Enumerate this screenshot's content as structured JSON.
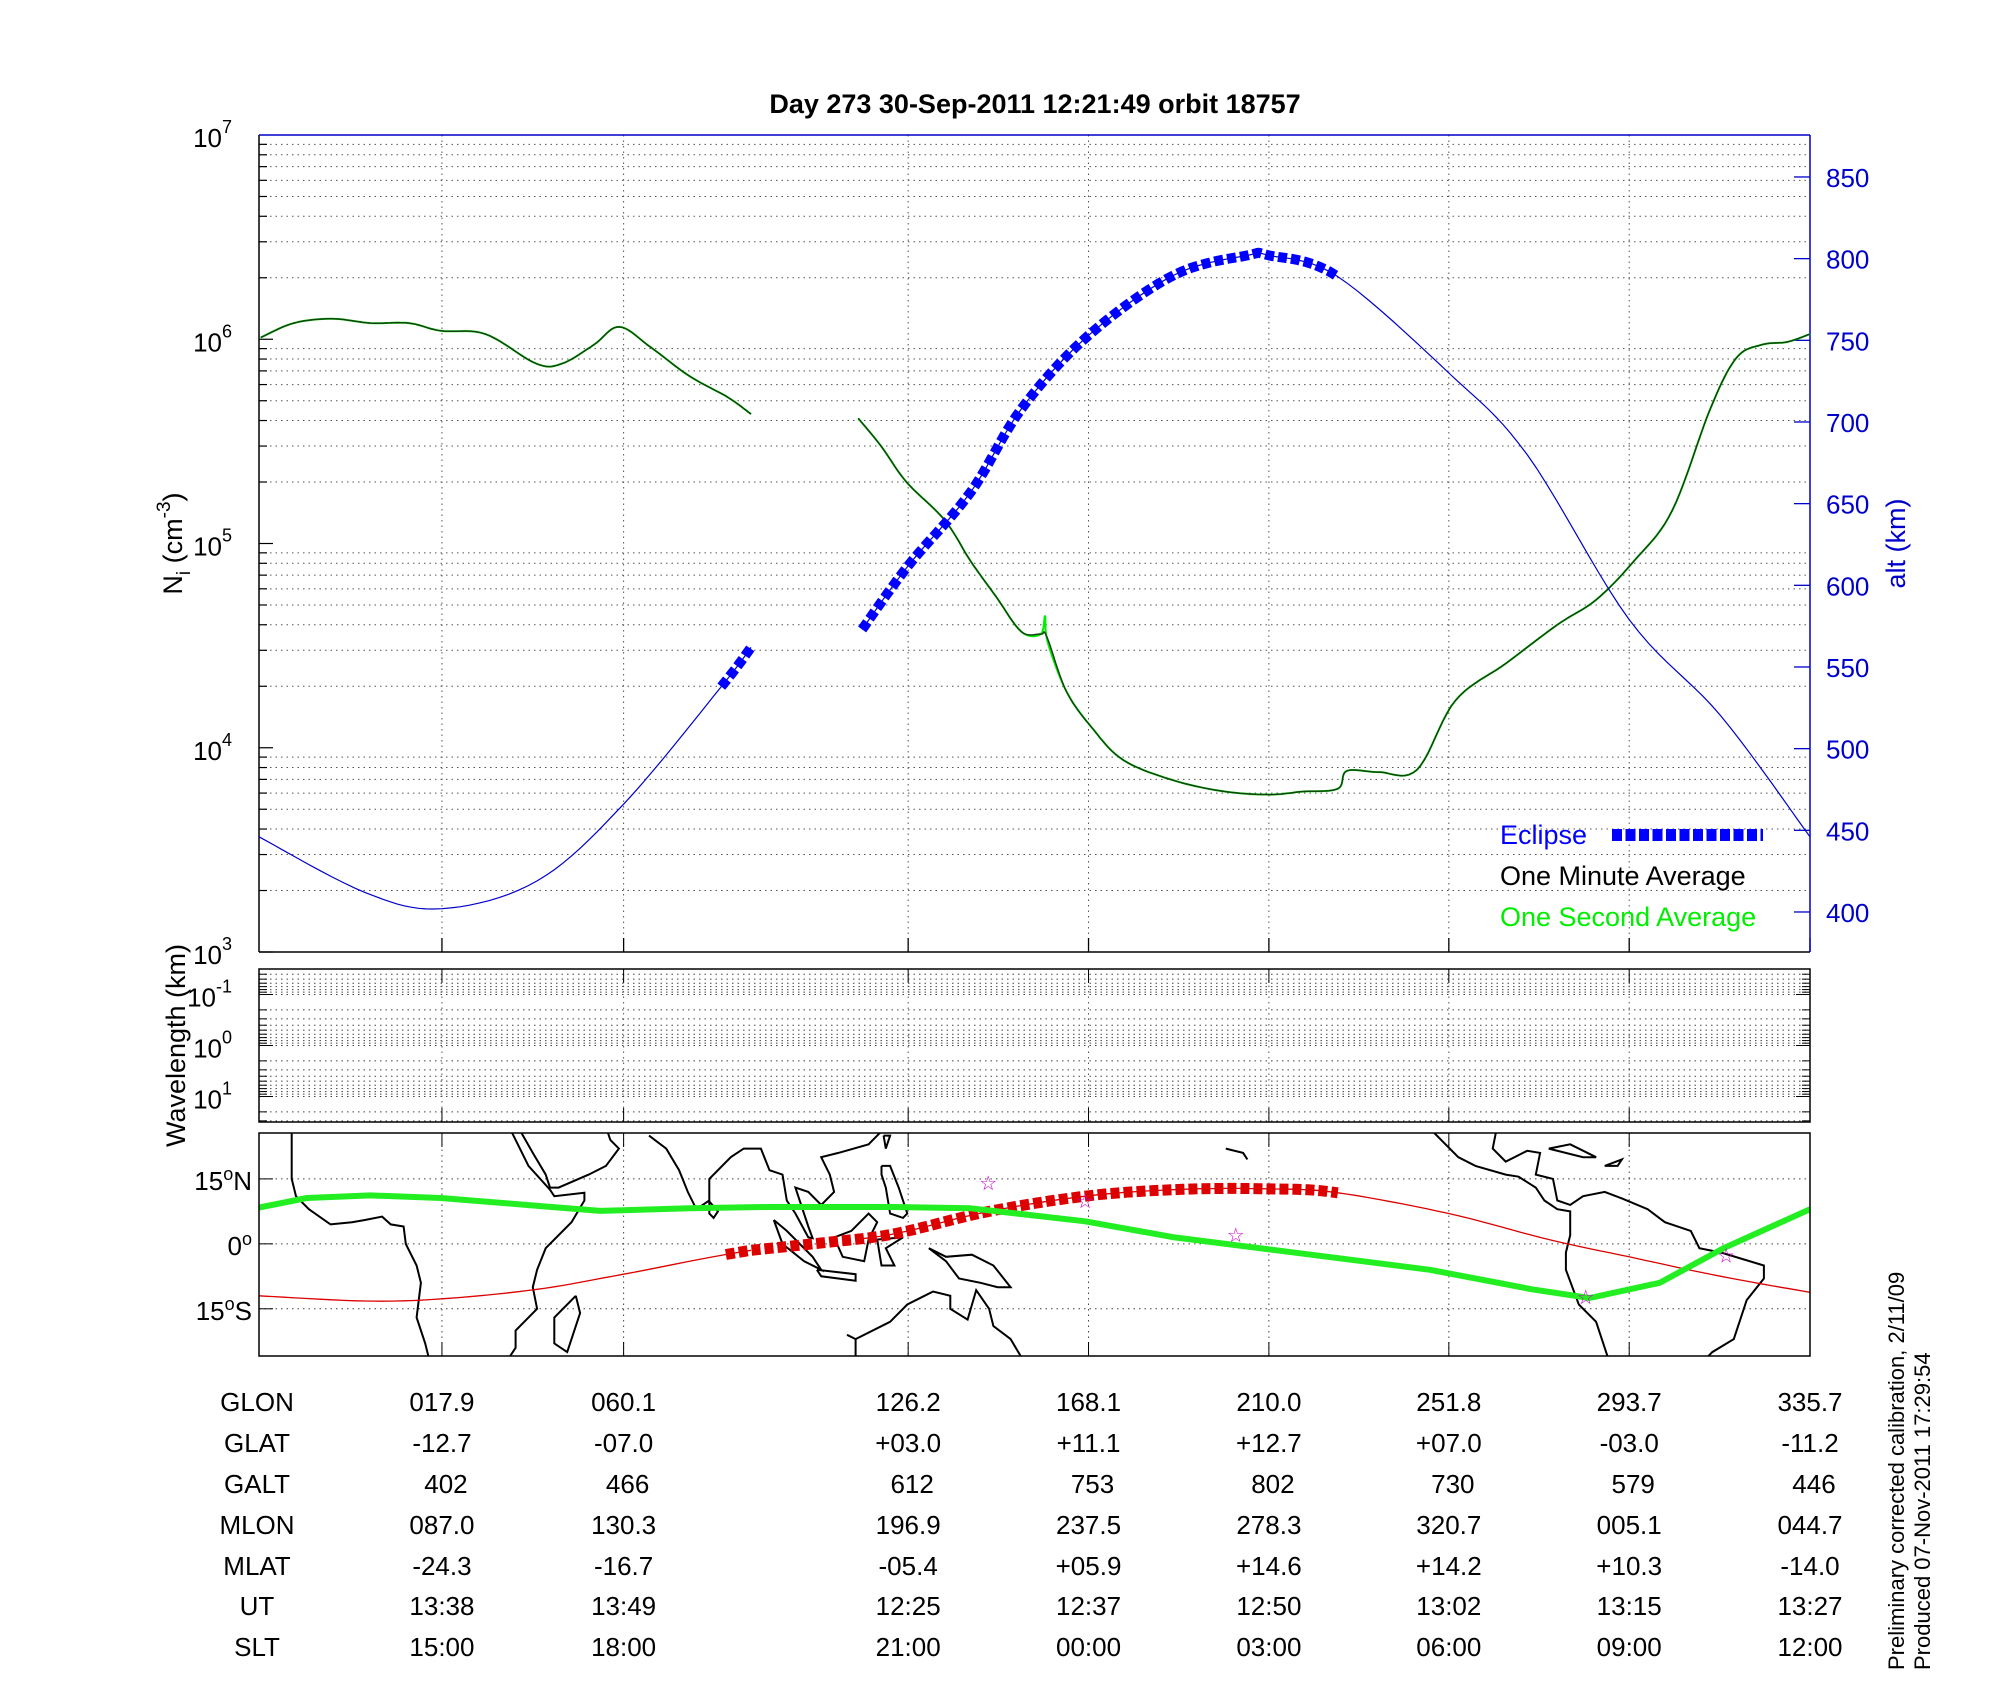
{
  "title": "Day 273  30-Sep-2011 12:21:49   orbit 18757",
  "footnote": [
    "Preliminary corrected calibration, 2/11/09",
    "Produced 07-Nov-2011 17:29:54"
  ],
  "colors": {
    "eclipse": "#0000ff",
    "one_minute": "#000000",
    "one_second": "#00ee00",
    "altitude": "#0000cc",
    "track": "#dd0000",
    "dip_equator": "#22ee22",
    "stars": "#cc00cc"
  },
  "chart_data": [
    {
      "type": "line",
      "panel": "density",
      "ylabel": {
        "base": "N",
        "sub": "i",
        "unit": " (cm",
        "sup": "-3",
        "close": ")"
      },
      "y_scale": "log",
      "ylim": [
        1000,
        10000000
      ],
      "y_ticks": [
        {
          "base": "10",
          "exp": "3",
          "v": 1000
        },
        {
          "base": "10",
          "exp": "4",
          "v": 10000
        },
        {
          "base": "10",
          "exp": "5",
          "v": 100000
        },
        {
          "base": "10",
          "exp": "6",
          "v": 1000000
        },
        {
          "base": "10",
          "exp": "7",
          "v": 10000000
        }
      ],
      "x_quantity": "GLON",
      "xlim": [
        -24.6,
        335.7
      ],
      "right_axis": {
        "label": "alt (km)",
        "ylim": [
          375.5,
          875.7
        ],
        "ticks": [
          "400",
          "450",
          "500",
          "550",
          "600",
          "650",
          "700",
          "750",
          "800",
          "850"
        ]
      },
      "grid": true,
      "legend": {
        "placement": "bottom-right",
        "entries": [
          "Eclipse",
          "One Minute Average",
          "One Second Average"
        ]
      },
      "series": [
        {
          "name": "One Minute Average",
          "segments": [
            [
              [
                -24.2,
                1020000.0
              ],
              [
                -16.5,
                1200000.0
              ],
              [
                -7.6,
                1260000.0
              ],
              [
                1.3,
                1200000.0
              ],
              [
                10.2,
                1200000.0
              ],
              [
                17.6,
                1100000.0
              ],
              [
                28.0,
                1060000.0
              ],
              [
                39.8,
                760000.0
              ],
              [
                45.8,
                760000.0
              ],
              [
                53.2,
                940000.0
              ],
              [
                59.1,
                1150000.0
              ],
              [
                66.5,
                910000.0
              ],
              [
                75.4,
                660000.0
              ],
              [
                84.3,
                520000.0
              ],
              [
                89.7,
                430000.0
              ]
            ],
            [
              [
                114.6,
                410000.0
              ],
              [
                119.9,
                300000.0
              ],
              [
                125.8,
                200000.0
              ],
              [
                134.7,
                130000.0
              ],
              [
                140.7,
                82000.0
              ],
              [
                146.6,
                55000.0
              ],
              [
                152.5,
                37000.0
              ],
              [
                157.0,
                36000.0
              ],
              [
                158.4,
                35000.0
              ],
              [
                162.9,
                19000.0
              ],
              [
                168.8,
                12600.0
              ],
              [
                176.2,
                8700.0
              ],
              [
                188.1,
                6900.0
              ],
              [
                199.9,
                6100.0
              ],
              [
                210.3,
                5900.0
              ],
              [
                217.7,
                6100.0
              ],
              [
                226.0,
                6300.0
              ],
              [
                228.1,
                7700.0
              ],
              [
                235.5,
                7600.0
              ],
              [
                244.4,
                7800.0
              ],
              [
                253.3,
                17000.0
              ],
              [
                265.2,
                26000.0
              ],
              [
                277.0,
                40000.0
              ],
              [
                286.0,
                53000.0
              ],
              [
                294.8,
                82000.0
              ],
              [
                303.7,
                145000.0
              ],
              [
                312.6,
                460000.0
              ],
              [
                318.6,
                810000.0
              ],
              [
                324.5,
                940000.0
              ],
              [
                330.4,
                970000.0
              ],
              [
                335.7,
                1060000.0
              ]
            ]
          ]
        },
        {
          "name": "One Second Average",
          "segments": [
            [
              [
                -24.2,
                1020000.0
              ],
              [
                -16.5,
                1200000.0
              ],
              [
                -7.6,
                1260000.0
              ],
              [
                1.3,
                1200000.0
              ],
              [
                10.2,
                1200000.0
              ],
              [
                17.6,
                1100000.0
              ],
              [
                28.0,
                1060000.0
              ],
              [
                39.8,
                760000.0
              ],
              [
                45.8,
                760000.0
              ],
              [
                53.2,
                940000.0
              ],
              [
                59.1,
                1150000.0
              ],
              [
                66.5,
                910000.0
              ],
              [
                75.4,
                660000.0
              ],
              [
                84.3,
                520000.0
              ],
              [
                89.7,
                430000.0
              ]
            ],
            [
              [
                114.6,
                410000.0
              ],
              [
                119.9,
                300000.0
              ],
              [
                125.8,
                200000.0
              ],
              [
                134.7,
                130000.0
              ],
              [
                140.7,
                82000.0
              ],
              [
                146.6,
                55000.0
              ],
              [
                152.5,
                37000.0
              ],
              [
                157.0,
                36000.0
              ],
              [
                158.0,
                44000.0
              ],
              [
                158.6,
                33000.0
              ],
              [
                162.9,
                19000.0
              ],
              [
                168.8,
                12600.0
              ],
              [
                176.2,
                8700.0
              ],
              [
                188.1,
                6900.0
              ],
              [
                199.9,
                6100.0
              ],
              [
                210.3,
                5900.0
              ],
              [
                217.7,
                6100.0
              ],
              [
                226.0,
                6300.0
              ],
              [
                228.1,
                7700.0
              ],
              [
                235.5,
                7600.0
              ],
              [
                244.4,
                7800.0
              ],
              [
                253.3,
                17000.0
              ],
              [
                265.2,
                26000.0
              ],
              [
                277.0,
                40000.0
              ],
              [
                286.0,
                53000.0
              ],
              [
                294.8,
                82000.0
              ],
              [
                303.7,
                145000.0
              ],
              [
                312.6,
                460000.0
              ],
              [
                318.6,
                810000.0
              ],
              [
                324.5,
                940000.0
              ],
              [
                330.4,
                970000.0
              ],
              [
                335.7,
                1060000.0
              ]
            ]
          ]
        },
        {
          "name": "alt (km)",
          "axis": "right",
          "segments": [
            [
              [
                -24.6,
                446
              ],
              [
                0,
                412
              ],
              [
                17.9,
                402
              ],
              [
                40,
                419
              ],
              [
                60.1,
                466
              ],
              [
                82.8,
                538
              ],
              [
                89.7,
                562
              ]
            ],
            [
              [
                115.5,
                573
              ],
              [
                126.2,
                612
              ],
              [
                140.7,
                657
              ],
              [
                152.5,
                708
              ],
              [
                168.1,
                753
              ],
              [
                188,
                790
              ],
              [
                205,
                802
              ],
              [
                210,
                802
              ],
              [
                226,
                789
              ],
              [
                251.8,
                730
              ],
              [
                270,
                680
              ],
              [
                293.7,
                579
              ],
              [
                315,
                520
              ],
              [
                335.7,
                446
              ]
            ]
          ]
        }
      ],
      "eclipse_ranges": [
        [
          82.8,
          89.7
        ],
        [
          115.5,
          226.0
        ]
      ]
    },
    {
      "type": "heatmap",
      "panel": "wavelength",
      "ylabel": "Wavelength (km)",
      "y_scale": "log",
      "y_reversed": true,
      "ylim": [
        0.0316,
        31.6
      ],
      "y_ticks": [
        {
          "base": "10",
          "exp": "-1"
        },
        {
          "base": "10",
          "exp": "0"
        },
        {
          "base": "10",
          "exp": "1"
        }
      ],
      "values": []
    },
    {
      "type": "scatter",
      "panel": "map",
      "ylim": [
        -25.9,
        25.6
      ],
      "y_ticks": [
        {
          "label": "15",
          "deg": "o",
          "hemi": "N",
          "v": 15
        },
        {
          "label": "0",
          "deg": "o",
          "hemi": "",
          "v": 0
        },
        {
          "label": "15",
          "deg": "o",
          "hemi": "S",
          "v": -15
        }
      ],
      "satellite_track": [
        [
          -24.6,
          -12
        ],
        [
          0,
          -13.2
        ],
        [
          17.9,
          -12.7
        ],
        [
          40,
          -10.5
        ],
        [
          60.1,
          -7.0
        ],
        [
          89.7,
          -1.5
        ],
        [
          115.5,
          1.2
        ],
        [
          126.2,
          3.0
        ],
        [
          145,
          7.5
        ],
        [
          168.1,
          11.1
        ],
        [
          190,
          12.6
        ],
        [
          210,
          12.7
        ],
        [
          226,
          11.8
        ],
        [
          251.8,
          7.0
        ],
        [
          275,
          1.0
        ],
        [
          293.7,
          -3.0
        ],
        [
          315,
          -7.5
        ],
        [
          335.7,
          -11.2
        ]
      ],
      "dip_equator": [
        [
          -24.6,
          8.4
        ],
        [
          -13.5,
          10.6
        ],
        [
          1.3,
          11.2
        ],
        [
          17.6,
          10.6
        ],
        [
          39.8,
          8.8
        ],
        [
          54.7,
          7.6
        ],
        [
          75.4,
          8.2
        ],
        [
          93.2,
          8.5
        ],
        [
          122.9,
          8.5
        ],
        [
          140.7,
          8.2
        ],
        [
          167.3,
          5.2
        ],
        [
          188.1,
          1.5
        ],
        [
          211.8,
          -1.5
        ],
        [
          247.4,
          -6
        ],
        [
          271.1,
          -10.5
        ],
        [
          284.5,
          -12.5
        ],
        [
          300.8,
          -9
        ],
        [
          315.6,
          -1
        ],
        [
          335.7,
          8
        ]
      ],
      "stars": [
        [
          144.8,
          14
        ],
        [
          167.3,
          9.9
        ],
        [
          202.3,
          2
        ],
        [
          283.6,
          -12.3
        ],
        [
          316.2,
          -2.7
        ]
      ]
    }
  ],
  "table": {
    "row_labels": [
      "GLON",
      "GLAT",
      "GALT",
      "MLON",
      "MLAT",
      "UT",
      "SLT"
    ],
    "columns": [
      {
        "glon": 17.9,
        "cells": [
          "017.9",
          "-12.7",
          "402",
          "087.0",
          "-24.3",
          "13:38",
          "15:00"
        ]
      },
      {
        "glon": 60.1,
        "cells": [
          "060.1",
          "-07.0",
          "466",
          "130.3",
          "-16.7",
          "13:49",
          "18:00"
        ]
      },
      {
        "glon": 126.2,
        "cells": [
          "126.2",
          "+03.0",
          "612",
          "196.9",
          "-05.4",
          "12:25",
          "21:00"
        ]
      },
      {
        "glon": 168.1,
        "cells": [
          "168.1",
          "+11.1",
          "753",
          "237.5",
          "+05.9",
          "12:37",
          "00:00"
        ]
      },
      {
        "glon": 210.0,
        "cells": [
          "210.0",
          "+12.7",
          "802",
          "278.3",
          "+14.6",
          "12:50",
          "03:00"
        ]
      },
      {
        "glon": 251.8,
        "cells": [
          "251.8",
          "+07.0",
          "730",
          "320.7",
          "+14.2",
          "13:02",
          "06:00"
        ]
      },
      {
        "glon": 293.7,
        "cells": [
          "293.7",
          "-03.0",
          "579",
          "005.1",
          "+10.3",
          "13:15",
          "09:00"
        ]
      },
      {
        "glon": 335.7,
        "cells": [
          "335.7",
          "-11.2",
          "446",
          "044.7",
          "-14.0",
          "13:27",
          "12:00"
        ]
      }
    ]
  }
}
